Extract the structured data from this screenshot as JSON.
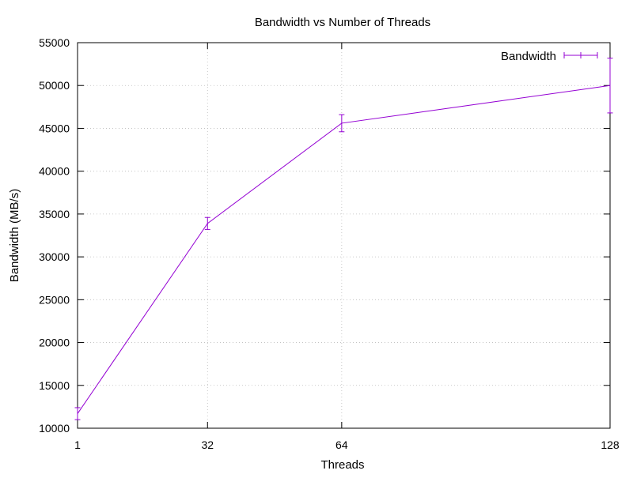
{
  "chart_data": {
    "type": "line",
    "title": "Bandwidth vs Number of Threads",
    "xlabel": "Threads",
    "ylabel": "Bandwidth (MB/s)",
    "x": [
      1,
      32,
      64,
      128
    ],
    "xticks": [
      1,
      32,
      64,
      128
    ],
    "xlim": [
      1,
      128
    ],
    "ylim": [
      10000,
      55000
    ],
    "yticks": [
      10000,
      15000,
      20000,
      25000,
      30000,
      35000,
      40000,
      45000,
      50000,
      55000
    ],
    "grid": true,
    "legend_position": "top-right",
    "series": [
      {
        "name": "Bandwidth",
        "color": "#9400d3",
        "values": [
          11700,
          33900,
          45600,
          50000
        ],
        "error": [
          700,
          700,
          1000,
          3200
        ]
      }
    ]
  }
}
